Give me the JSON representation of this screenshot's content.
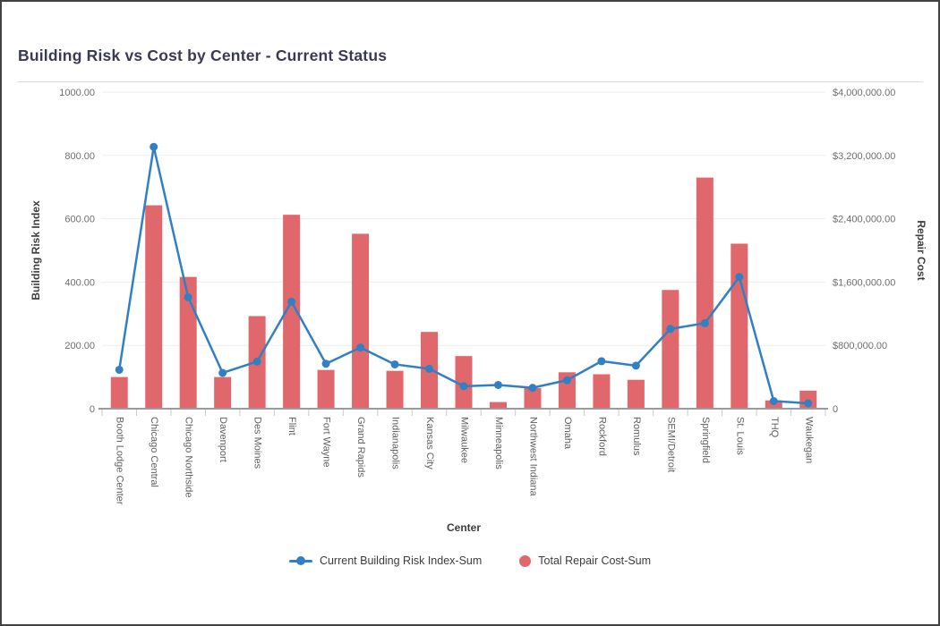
{
  "chart_data": {
    "type": "combo",
    "title": "Building Risk vs Cost by Center - Current Status",
    "grid": true,
    "legend_position": "bottom",
    "x_axis": {
      "title": "Center",
      "categories": [
        "Booth Lodge Center",
        "Chicago Central",
        "Chicago Northside",
        "Davenport",
        "Des Moines",
        "Flint",
        "Fort Wayne",
        "Grand Rapids",
        "Indianapolis",
        "Kansas City",
        "Milwaukee",
        "Minneapolis",
        "Northwest Indiana",
        "Omaha",
        "Rockford",
        "Romulus",
        "SEMI/Detroit",
        "Springfield",
        "St. Louis",
        "THQ",
        "Waukegan"
      ]
    },
    "left_axis": {
      "title": "Building Risk Index",
      "min": 0,
      "max": 1000,
      "tick_values": [
        0,
        200,
        400,
        600,
        800,
        1000
      ],
      "tick_labels": [
        "0",
        "200.00",
        "400.00",
        "600.00",
        "800.00",
        "1000.00"
      ]
    },
    "right_axis": {
      "title": "Repair Cost",
      "min": 0,
      "max": 4000000,
      "tick_values": [
        0,
        800000,
        1600000,
        2400000,
        3200000,
        4000000
      ],
      "tick_labels": [
        "0",
        "$800,000.00",
        "$1,600,000.00",
        "$2,400,000.00",
        "$3,200,000.00",
        "$4,000,000.00"
      ]
    },
    "series": [
      {
        "name": "Current Building Risk Index-Sum",
        "type": "line",
        "axis": "left",
        "color": "#3180c3",
        "values": [
          123,
          827,
          352,
          113,
          149,
          338,
          142,
          193,
          140,
          126,
          71,
          75,
          66,
          90,
          150,
          136,
          252,
          270,
          416,
          24,
          17
        ]
      },
      {
        "name": "Total Repair Cost-Sum",
        "type": "bar",
        "axis": "right",
        "color": "#e0686c",
        "values": [
          400000,
          2570000,
          1665000,
          400000,
          1170000,
          2450000,
          490000,
          2210000,
          478000,
          970000,
          665000,
          84000,
          260000,
          460000,
          435000,
          365000,
          1500000,
          2920000,
          2085000,
          105000,
          228000
        ]
      }
    ],
    "colors": {
      "gridline": "#ededed",
      "axis_line": "#9b9b9b",
      "x_tick": "#c2cbd6"
    }
  }
}
